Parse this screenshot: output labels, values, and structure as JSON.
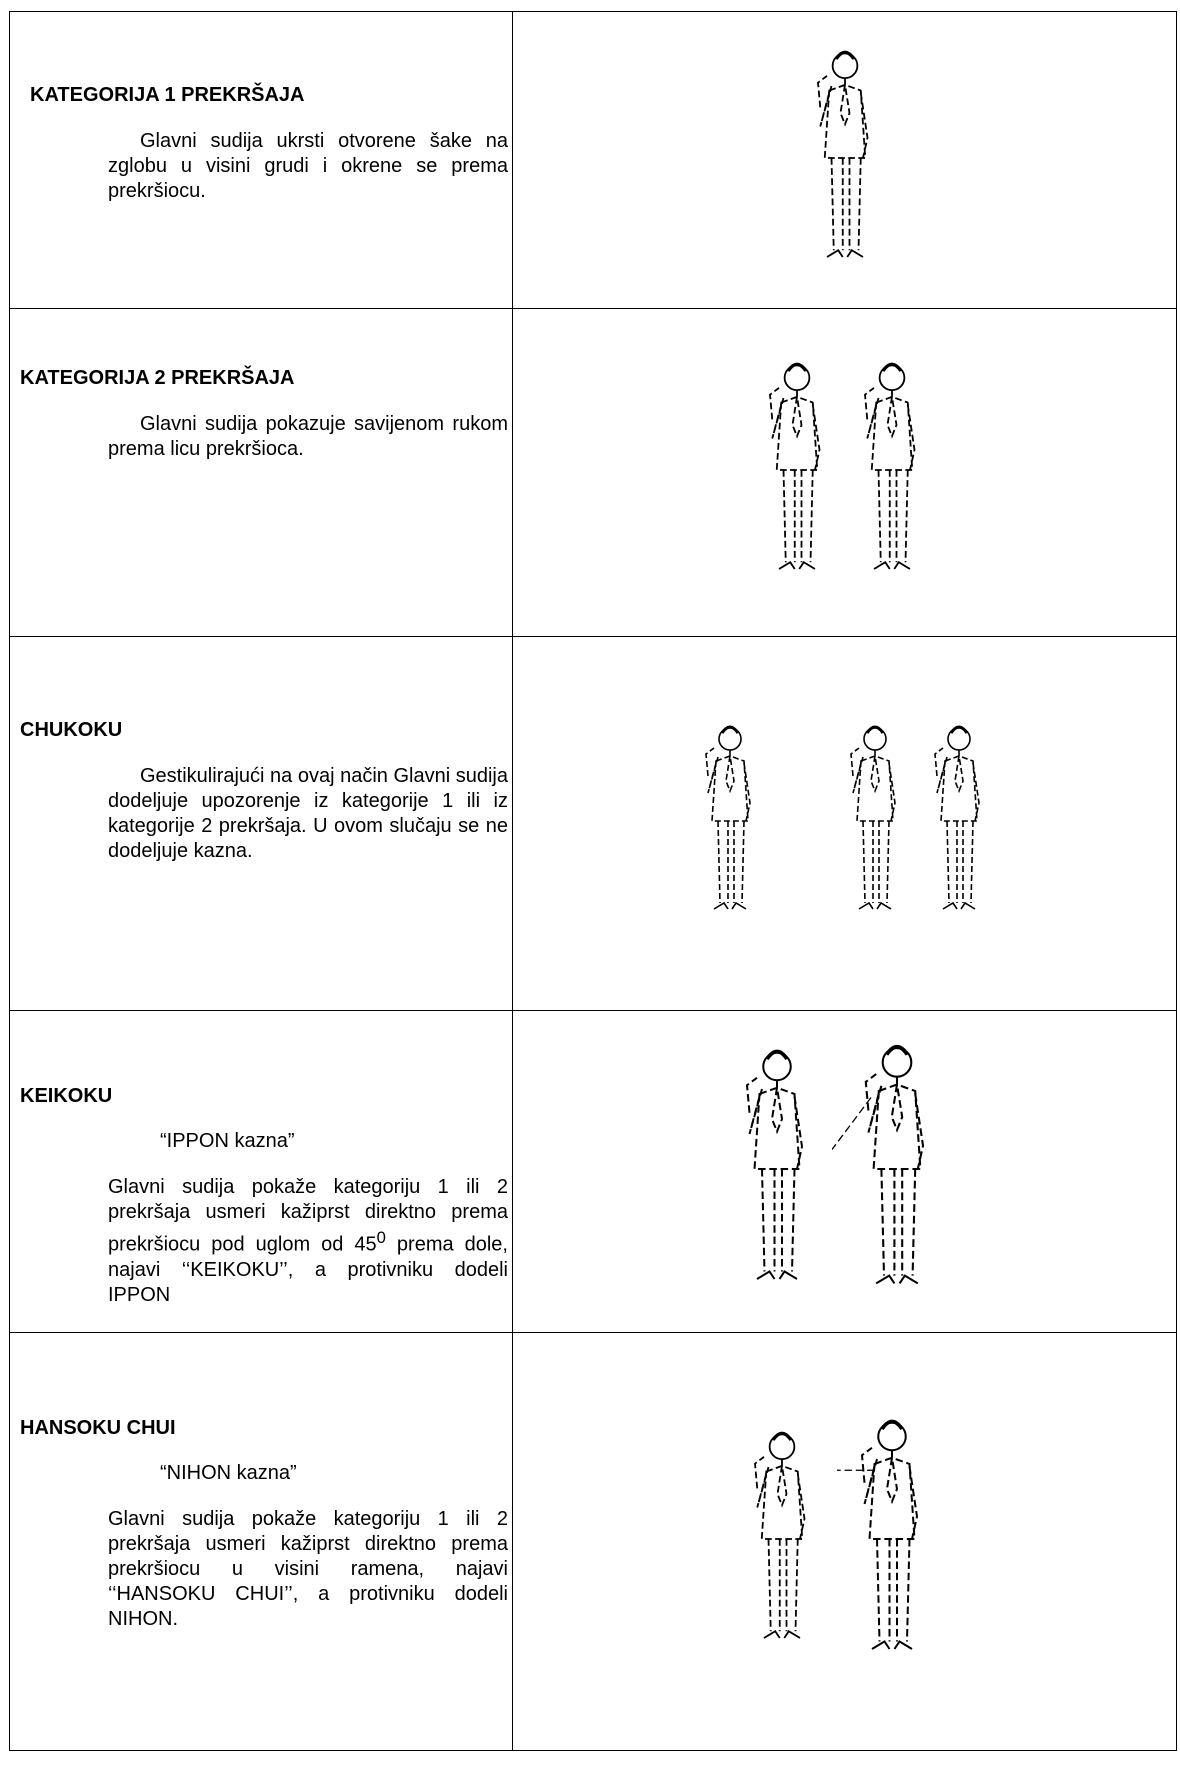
{
  "rows": [
    {
      "title": "KATEGORIJA 1 PREKRŠAJA",
      "body": "Glavni sudija ukrsti otvorene šake na zglobu  u visini grudi i okrene se prema prekršiocu."
    },
    {
      "title": "KATEGORIJA 2 PREKRŠAJA",
      "body": "Glavni sudija pokazuje savijenom rukom prema licu prekršioca."
    },
    {
      "title": "CHUKOKU",
      "body": "Gestikulirajući na ovaj način Glavni sudija dodeljuje upozorenje iz kategorije 1 ili iz kategorije 2 prekršaja. U ovom slučaju se ne dodeljuje kazna."
    },
    {
      "title": "KEIKOKU",
      "subtitle": "“IPPON kazna”",
      "body_before": "Glavni sudija pokaže kategoriju 1 ili 2 prekršaja usmeri kažiprst direktno prema prekršiocu pod uglom od 45",
      "superscript": "0",
      "body_after": " prema dole, najavi ‘‘KEIKOKU’’, a protivniku dodeli IPPON"
    },
    {
      "title": "HANSOKU CHUI",
      "subtitle": "“NIHON kazna”",
      "body": "Glavni sudija pokaže kategoriju 1 ili 2 prekršaja usmeri kažiprst direktno prema prekršiocu u visini ramena, najavi ‘‘HANSOKU CHUI’’, a protivniku dodeli NIHON."
    }
  ]
}
